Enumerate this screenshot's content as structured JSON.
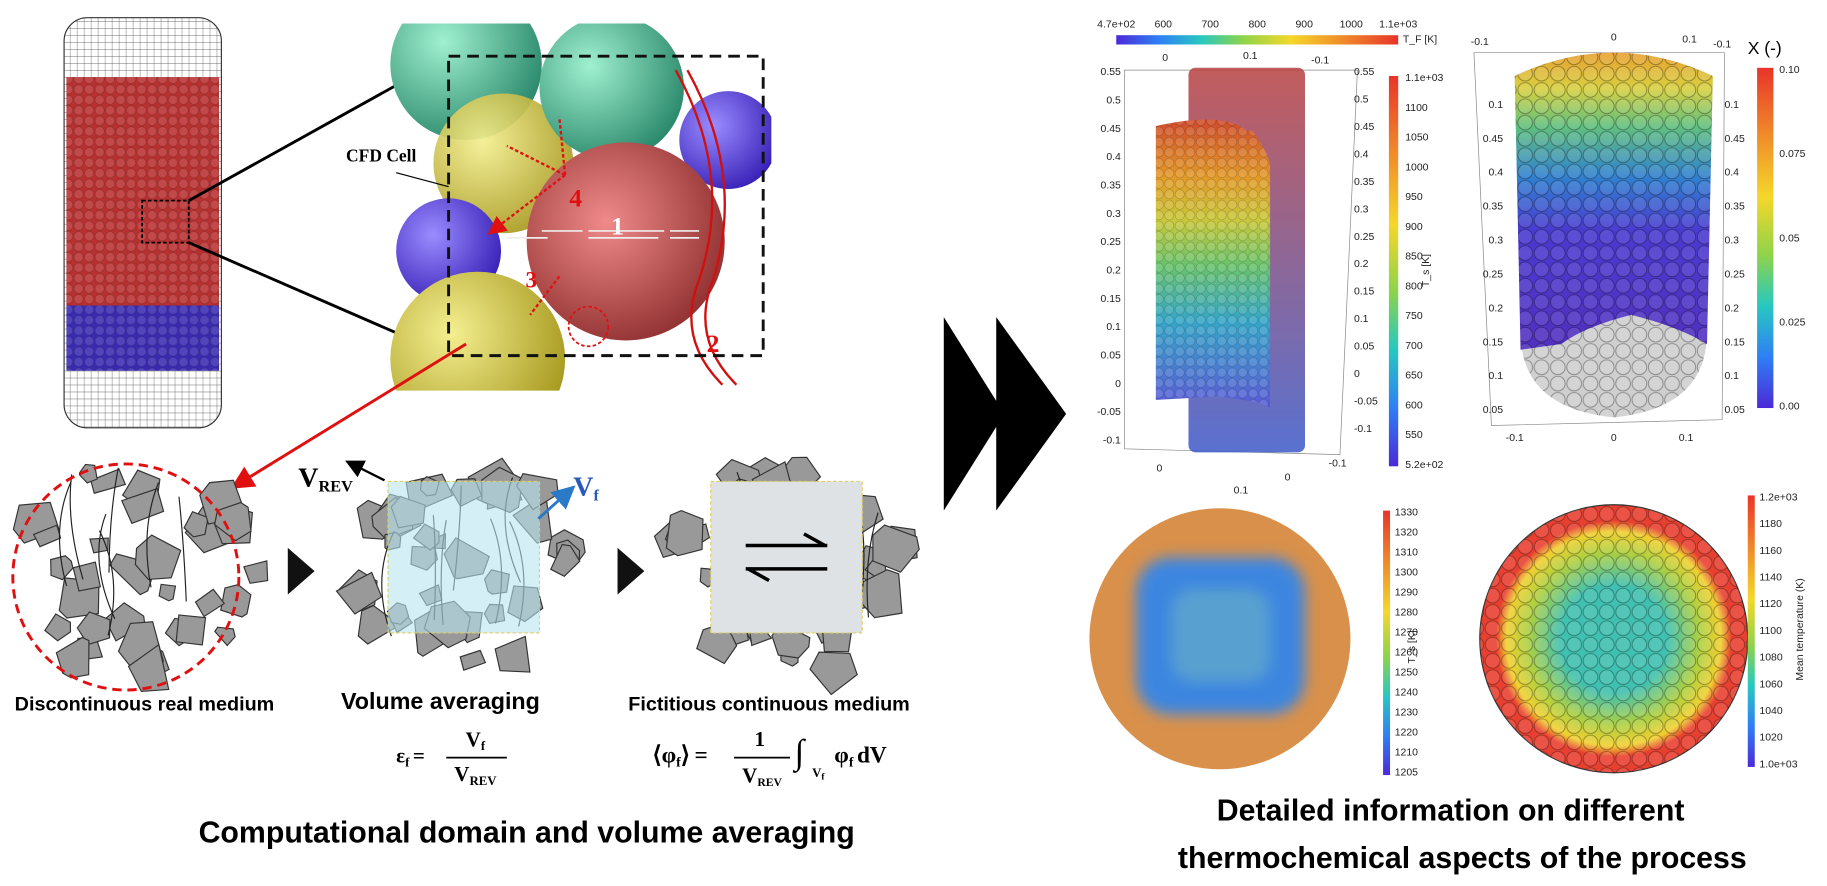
{
  "left": {
    "cfd_label": "CFD Cell",
    "numbers": [
      "1",
      "2",
      "3",
      "4"
    ],
    "v_rev": "V",
    "v_rev_sub": "REV",
    "v_f": "V",
    "v_f_sub": "f",
    "captions": [
      "Discontinuous real medium",
      "Volume averaging",
      "Fictitious continuous medium"
    ],
    "equations": [
      {
        "lhs": "ε",
        "lhs_sub": "f",
        "eq": "=",
        "num": "V",
        "num_sub": "f",
        "den": "V",
        "den_sub": "REV"
      },
      {
        "lhs": "⟨φ",
        "lhs_sub": "f",
        "lhs_close": "⟩",
        "eq": "=",
        "num": "1",
        "den": "V",
        "den_sub": "REV",
        "integral": "∫",
        "int_sub": "V",
        "int_sub2": "f",
        "integrand": "φ",
        "integrand_sub": "f",
        "diff": "dV"
      }
    ],
    "title": "Computational domain and volume averaging"
  },
  "right": {
    "top_colorbar": {
      "label": "T_F [K]",
      "ticks": [
        "4.7e+02",
        "600",
        "700",
        "800",
        "900",
        "1000",
        "1.1e+03"
      ]
    },
    "plot1": {
      "top_ticks": [
        "0",
        "0.1",
        "-0.1"
      ],
      "bottom_ticks": [
        "0",
        "0.1",
        "0",
        "-0.1"
      ],
      "left_ticks": [
        "0.55",
        "0.5",
        "0.45",
        "0.4",
        "0.35",
        "0.3",
        "0.25",
        "0.2",
        "0.15",
        "0.1",
        "0.05",
        "0",
        "-0.05",
        "-0.1"
      ],
      "right_ticks": [
        "0.55",
        "0.5",
        "0.45",
        "0.4",
        "0.35",
        "0.3",
        "0.25",
        "0.2",
        "0.15",
        "0.1",
        "0.05",
        "0",
        "-0.05",
        "-0.1"
      ],
      "colorbar_label": "T_s [K]",
      "colorbar_ticks": [
        "1.1e+03",
        "1100",
        "1050",
        "1000",
        "950",
        "900",
        "850",
        "800",
        "750",
        "700",
        "650",
        "600",
        "550",
        "5.2e+02"
      ]
    },
    "plot2": {
      "top_ticks": [
        "-0.1",
        "0",
        "0.1",
        "-0.1"
      ],
      "bottom_ticks": [
        "-0.1",
        "0",
        "0.1"
      ],
      "left_ticks": [
        "0.1",
        "0.45",
        "0.4",
        "0.35",
        "0.3",
        "0.25",
        "0.2",
        "0.15",
        "0.1",
        "0.05"
      ],
      "right_ticks": [
        "0.1",
        "0.45",
        "0.4",
        "0.35",
        "0.3",
        "0.25",
        "0.2",
        "0.15",
        "0.1",
        "0.05"
      ],
      "colorbar_label": "X (-)",
      "colorbar_ticks": [
        "0.10",
        "0.075",
        "0.05",
        "0.025",
        "0.00"
      ]
    },
    "plot3": {
      "colorbar_label": "T_s [K]",
      "colorbar_ticks": [
        "1330",
        "1320",
        "1310",
        "1300",
        "1290",
        "1280",
        "1270",
        "1260",
        "1250",
        "1240",
        "1230",
        "1220",
        "1210",
        "1205"
      ]
    },
    "plot4": {
      "colorbar_label": "Mean temperature (K)",
      "colorbar_ticks": [
        "1.2e+03",
        "1180",
        "1160",
        "1140",
        "1120",
        "1100",
        "1080",
        "1060",
        "1040",
        "1020",
        "1.0e+03"
      ]
    },
    "title_lines": [
      "Detailed information on different",
      "thermochemical aspects of the process"
    ]
  }
}
